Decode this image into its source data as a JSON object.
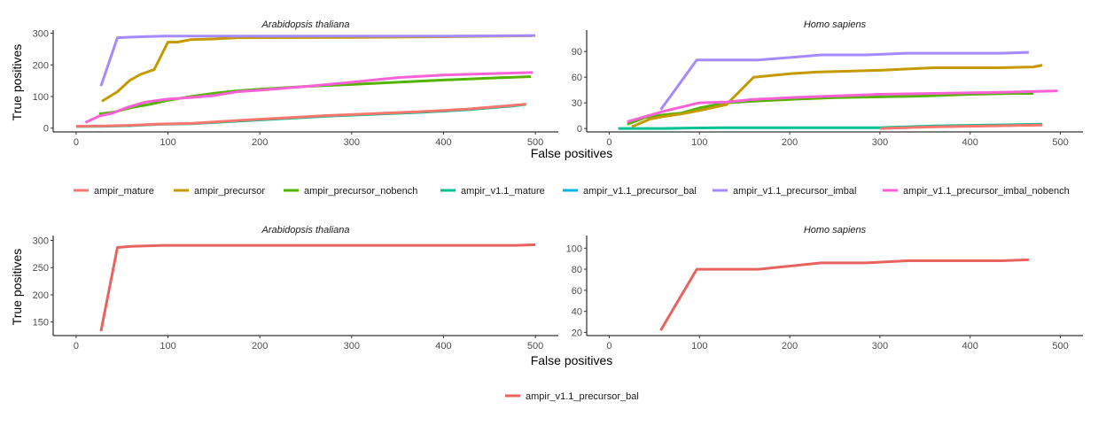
{
  "colors": {
    "ampir_mature": "#F8766D",
    "ampir_precursor": "#C49A00",
    "ampir_precursor_nobench": "#53B400",
    "ampir_v1.1_mature": "#00C094",
    "ampir_v1.1_precursor_bal": "#00B6EB",
    "ampir_v1.1_precursor_imbal": "#A58AFF",
    "ampir_v1.1_precursor_imbal_nobench": "#FB61D7",
    "single": "#E8635E"
  },
  "chart_data": [
    {
      "type": "line",
      "title": "Arabidopsis thaliana",
      "xlabel": "False positives",
      "ylabel": "True positives",
      "xlim": [
        -25,
        525
      ],
      "ylim": [
        -12,
        310
      ],
      "x_ticks": [
        0,
        100,
        200,
        300,
        400,
        500
      ],
      "y_ticks": [
        0,
        100,
        200,
        300
      ],
      "series": [
        {
          "name": "ampir_precursor_nobench",
          "color_key": "ampir_precursor_nobench",
          "points": [
            [
              25,
              45
            ],
            [
              40,
              50
            ],
            [
              60,
              65
            ],
            [
              80,
              75
            ],
            [
              100,
              88
            ],
            [
              125,
              100
            ],
            [
              150,
              110
            ],
            [
              175,
              118
            ],
            [
              200,
              123
            ],
            [
              250,
              132
            ],
            [
              300,
              138
            ],
            [
              350,
              145
            ],
            [
              400,
              152
            ],
            [
              450,
              158
            ],
            [
              495,
              163
            ]
          ]
        },
        {
          "name": "ampir_v1.1_mature",
          "color_key": "ampir_v1.1_mature",
          "points": [
            [
              0,
              5
            ],
            [
              30,
              6
            ],
            [
              60,
              8
            ],
            [
              90,
              12
            ],
            [
              125,
              14
            ],
            [
              175,
              22
            ],
            [
              225,
              30
            ],
            [
              275,
              38
            ],
            [
              325,
              44
            ],
            [
              375,
              50
            ],
            [
              425,
              58
            ],
            [
              475,
              70
            ],
            [
              490,
              75
            ]
          ]
        },
        {
          "name": "ampir_mature",
          "color_key": "ampir_mature",
          "points": [
            [
              0,
              6
            ],
            [
              30,
              7
            ],
            [
              60,
              9
            ],
            [
              90,
              13
            ],
            [
              125,
              15
            ],
            [
              175,
              24
            ],
            [
              225,
              32
            ],
            [
              275,
              40
            ],
            [
              325,
              46
            ],
            [
              375,
              52
            ],
            [
              425,
              60
            ],
            [
              475,
              72
            ],
            [
              490,
              76
            ]
          ]
        },
        {
          "name": "ampir_precursor",
          "color_key": "ampir_precursor",
          "points": [
            [
              28,
              85
            ],
            [
              45,
              115
            ],
            [
              58,
              150
            ],
            [
              70,
              170
            ],
            [
              85,
              185
            ],
            [
              100,
              272
            ],
            [
              110,
              272
            ],
            [
              125,
              280
            ],
            [
              150,
              282
            ],
            [
              175,
              286
            ],
            [
              300,
              287
            ],
            [
              400,
              289
            ],
            [
              497,
              292
            ]
          ]
        },
        {
          "name": "ampir_v1.1_precursor_imbal_nobench",
          "color_key": "ampir_v1.1_precursor_imbal_nobench",
          "points": [
            [
              10,
              18
            ],
            [
              25,
              38
            ],
            [
              40,
              48
            ],
            [
              55,
              65
            ],
            [
              75,
              82
            ],
            [
              100,
              92
            ],
            [
              125,
              97
            ],
            [
              150,
              103
            ],
            [
              175,
              115
            ],
            [
              200,
              120
            ],
            [
              250,
              132
            ],
            [
              300,
              145
            ],
            [
              350,
              160
            ],
            [
              400,
              168
            ],
            [
              450,
              172
            ],
            [
              497,
              176
            ]
          ]
        },
        {
          "name": "ampir_v1.1_precursor_imbal",
          "color_key": "ampir_v1.1_precursor_imbal",
          "points": [
            [
              27,
              133
            ],
            [
              45,
              286
            ],
            [
              60,
              288
            ],
            [
              95,
              291
            ],
            [
              200,
              291
            ],
            [
              400,
              291
            ],
            [
              500,
              293
            ]
          ]
        }
      ]
    },
    {
      "type": "line",
      "title": "Homo sapiens",
      "xlabel": "False positives",
      "ylabel": "True positives",
      "xlim": [
        -25,
        525
      ],
      "ylim": [
        -4,
        115
      ],
      "x_ticks": [
        0,
        100,
        200,
        300,
        400,
        500
      ],
      "y_ticks": [
        0,
        30,
        60,
        90
      ],
      "series": [
        {
          "name": "ampir_v1.1_mature",
          "color_key": "ampir_v1.1_mature",
          "points": [
            [
              10,
              0
            ],
            [
              60,
              0
            ],
            [
              120,
              1
            ],
            [
              200,
              1
            ],
            [
              300,
              1
            ],
            [
              360,
              3
            ],
            [
              420,
              4
            ],
            [
              480,
              5
            ]
          ]
        },
        {
          "name": "ampir_mature",
          "color_key": "ampir_mature",
          "points": [
            [
              300,
              0
            ],
            [
              360,
              2
            ],
            [
              420,
              3
            ],
            [
              480,
              4
            ]
          ]
        },
        {
          "name": "ampir_precursor_nobench",
          "color_key": "ampir_precursor_nobench",
          "points": [
            [
              20,
              5
            ],
            [
              40,
              13
            ],
            [
              60,
              16
            ],
            [
              80,
              18
            ],
            [
              100,
              24
            ],
            [
              130,
              30
            ],
            [
              160,
              32
            ],
            [
              200,
              34
            ],
            [
              250,
              36
            ],
            [
              300,
              37
            ],
            [
              350,
              38
            ],
            [
              400,
              40
            ],
            [
              450,
              41
            ],
            [
              470,
              41
            ]
          ]
        },
        {
          "name": "ampir_precursor",
          "color_key": "ampir_precursor",
          "points": [
            [
              25,
              2
            ],
            [
              45,
              11
            ],
            [
              60,
              14
            ],
            [
              80,
              17
            ],
            [
              100,
              21
            ],
            [
              130,
              28
            ],
            [
              160,
              60
            ],
            [
              200,
              64
            ],
            [
              230,
              66
            ],
            [
              300,
              68
            ],
            [
              360,
              71
            ],
            [
              430,
              71
            ],
            [
              470,
              72
            ],
            [
              480,
              74
            ]
          ]
        },
        {
          "name": "ampir_v1.1_precursor_imbal_nobench",
          "color_key": "ampir_v1.1_precursor_imbal_nobench",
          "points": [
            [
              20,
              8
            ],
            [
              60,
              20
            ],
            [
              100,
              30
            ],
            [
              130,
              31
            ],
            [
              160,
              34
            ],
            [
              200,
              36
            ],
            [
              250,
              38
            ],
            [
              300,
              40
            ],
            [
              360,
              41
            ],
            [
              420,
              42
            ],
            [
              460,
              43
            ],
            [
              497,
              44
            ]
          ]
        },
        {
          "name": "ampir_v1.1_precursor_imbal",
          "color_key": "ampir_v1.1_precursor_imbal",
          "points": [
            [
              57,
              22
            ],
            [
              97,
              80
            ],
            [
              165,
              80
            ],
            [
              235,
              86
            ],
            [
              285,
              86
            ],
            [
              330,
              88
            ],
            [
              435,
              88
            ],
            [
              465,
              89
            ]
          ]
        }
      ]
    },
    {
      "type": "line",
      "title": "Arabidopsis thaliana",
      "xlabel": "False positives",
      "ylabel": "True positives",
      "xlim": [
        -25,
        525
      ],
      "ylim": [
        125,
        309
      ],
      "x_ticks": [
        0,
        100,
        200,
        300,
        400,
        500
      ],
      "y_ticks": [
        150,
        200,
        250,
        300
      ],
      "series": [
        {
          "name": "ampir_v1.1_precursor_bal",
          "color_key": "single",
          "points": [
            [
              27,
              133
            ],
            [
              45,
              287
            ],
            [
              60,
              289
            ],
            [
              95,
              291
            ],
            [
              200,
              291
            ],
            [
              400,
              291
            ],
            [
              480,
              291
            ],
            [
              500,
              292
            ]
          ]
        }
      ]
    },
    {
      "type": "line",
      "title": "Homo sapiens",
      "xlabel": "False positives",
      "ylabel": "True positives",
      "xlim": [
        -25,
        525
      ],
      "ylim": [
        17,
        112
      ],
      "x_ticks": [
        0,
        100,
        200,
        300,
        400,
        500
      ],
      "y_ticks": [
        20,
        40,
        60,
        80,
        100
      ],
      "series": [
        {
          "name": "ampir_v1.1_precursor_bal",
          "color_key": "single",
          "points": [
            [
              57,
              22
            ],
            [
              97,
              80
            ],
            [
              165,
              80
            ],
            [
              235,
              86
            ],
            [
              285,
              86
            ],
            [
              330,
              88
            ],
            [
              435,
              88
            ],
            [
              465,
              89
            ]
          ]
        }
      ]
    }
  ],
  "axis_titles": {
    "top_x": "False positives",
    "top_y": "True positives",
    "bottom_x": "False positives",
    "bottom_y": "True positives"
  },
  "legend_top": [
    {
      "label": "ampir_mature",
      "color_key": "ampir_mature"
    },
    {
      "label": "ampir_precursor",
      "color_key": "ampir_precursor"
    },
    {
      "label": "ampir_precursor_nobench",
      "color_key": "ampir_precursor_nobench"
    },
    {
      "label": "ampir_v1.1_mature",
      "color_key": "ampir_v1.1_mature"
    },
    {
      "label": "ampir_v1.1_precursor_bal",
      "color_key": "ampir_v1.1_precursor_bal"
    },
    {
      "label": "ampir_v1.1_precursor_imbal",
      "color_key": "ampir_v1.1_precursor_imbal"
    },
    {
      "label": "ampir_v1.1_precursor_imbal_nobench",
      "color_key": "ampir_v1.1_precursor_imbal_nobench"
    }
  ],
  "legend_bottom": [
    {
      "label": "ampir_v1.1_precursor_bal",
      "color_key": "single"
    }
  ]
}
